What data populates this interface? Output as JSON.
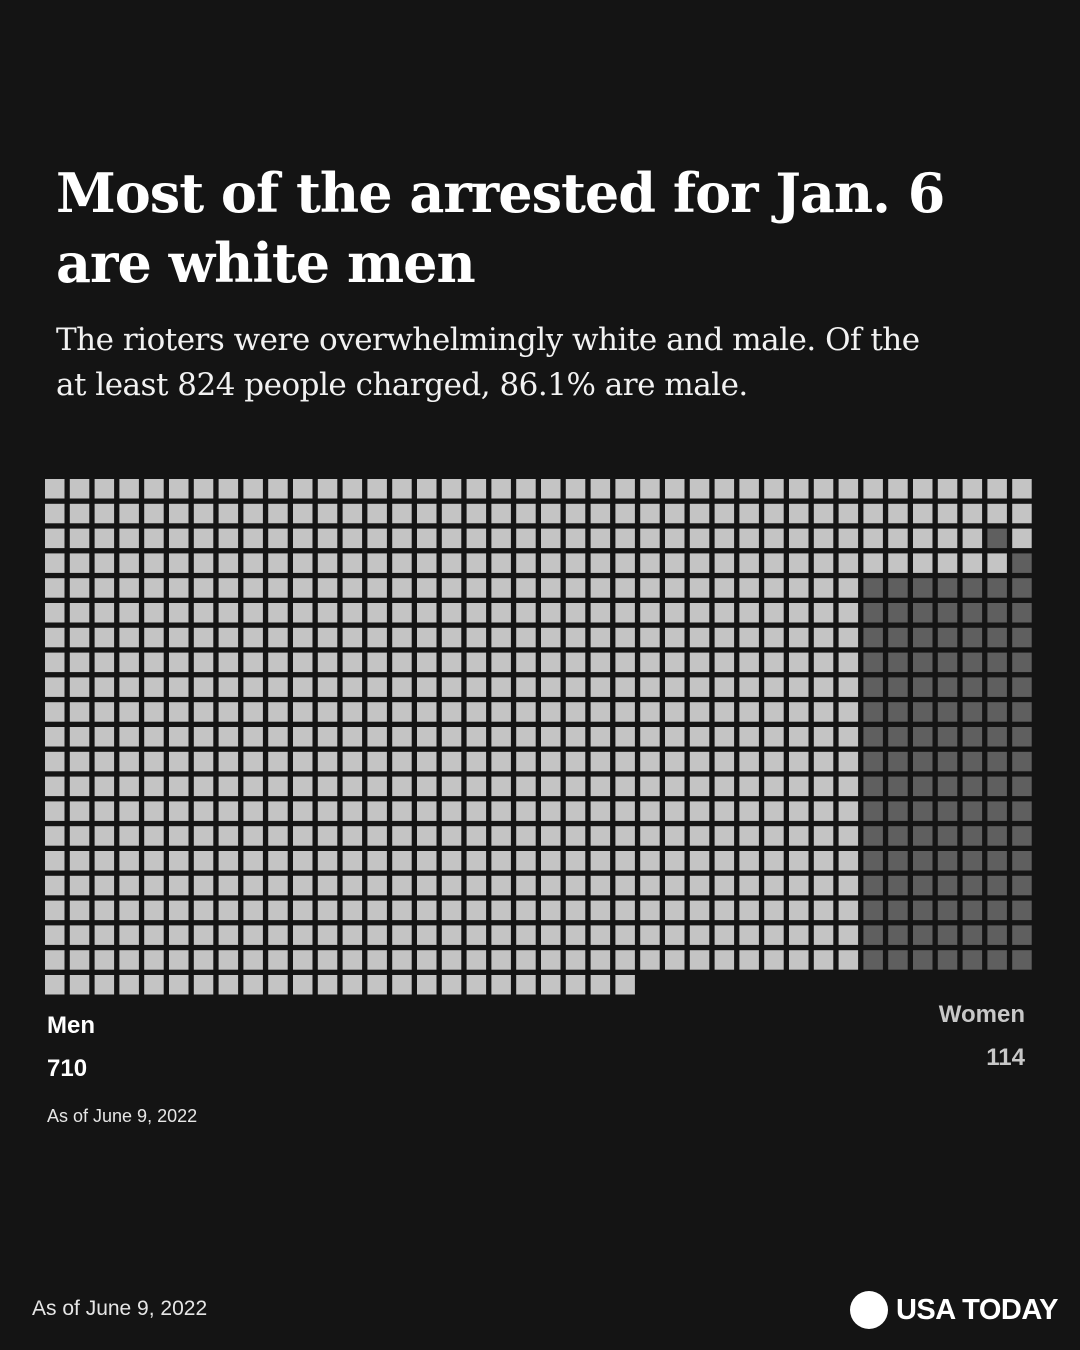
{
  "chart_data": {
    "type": "waffle",
    "title": "Most of the arrested for Jan. 6 are white men",
    "subtitle": "The rioters were overwhelmingly white and male. Of the at least 824 people charged, 86.1% are male.",
    "series": [
      {
        "name": "Men",
        "value": 710,
        "value_label": "710",
        "color": "#c4c4c4"
      },
      {
        "name": "Women",
        "value": 114,
        "value_label": "114",
        "color": "#5f5f5f"
      }
    ],
    "note": "As of June 9, 2022"
  },
  "footer": {
    "note": "As of June 9, 2022",
    "brand": "USA TODAY"
  }
}
